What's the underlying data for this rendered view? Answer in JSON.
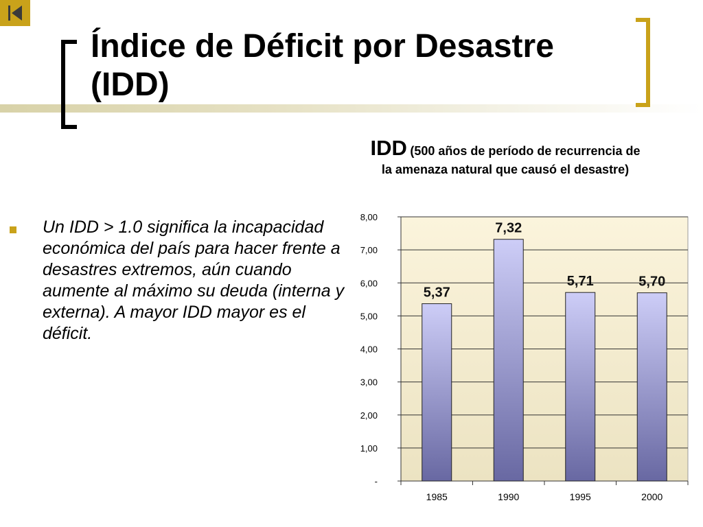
{
  "nav": {
    "back_icon": "skip-back-icon"
  },
  "slide": {
    "title": "Índice de Déficit por Desastre (IDD)",
    "bullet": " Un IDD > 1.0 significa la incapacidad económica del país para hacer frente a desastres extremos, aún cuando aumente al máximo su deuda (interna y externa). A mayor IDD mayor es el déficit."
  },
  "colors": {
    "accent": "#c9a21a",
    "plot_bg_top": "#fbf4dc",
    "plot_bg_bottom": "#ece3c2",
    "bar_top": "#cdcdf7",
    "bar_bottom": "#6868a2"
  },
  "chart_data": {
    "type": "bar",
    "title": "IDD",
    "subtitle": "(500 años de período de recurrencia de la amenaza natural que causó el desastre)",
    "categories": [
      "1985",
      "1990",
      "1995",
      "2000"
    ],
    "values": [
      5.37,
      7.32,
      5.71,
      5.7
    ],
    "data_labels": [
      "5,37",
      "7,32",
      "5,71",
      "5,70"
    ],
    "ylim": [
      0,
      8
    ],
    "yticks": [
      0,
      1,
      2,
      3,
      4,
      5,
      6,
      7,
      8
    ],
    "ytick_labels": [
      "-",
      "1,00",
      "2,00",
      "3,00",
      "4,00",
      "5,00",
      "6,00",
      "7,00",
      "8,00"
    ],
    "xlabel": "",
    "ylabel": "",
    "grid": true,
    "legend": "none"
  }
}
